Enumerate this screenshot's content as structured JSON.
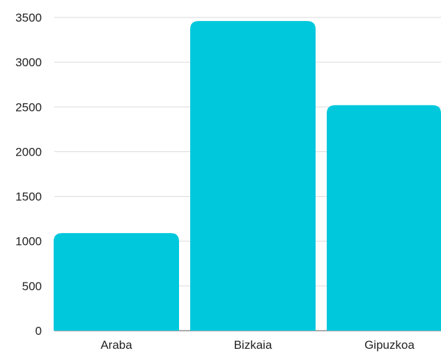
{
  "chart_data": {
    "type": "bar",
    "categories": [
      "Araba",
      "Bizkaia",
      "Gipuzkoa"
    ],
    "values": [
      1090,
      3460,
      2520
    ],
    "y_ticks": [
      "0",
      "500",
      "1000",
      "1500",
      "2000",
      "2500",
      "3000",
      "3500"
    ],
    "ylim": [
      0,
      3500
    ],
    "grid": true,
    "legend": "none",
    "bar_color": "#00c8dc",
    "grid_color": "#d9d9d9"
  }
}
